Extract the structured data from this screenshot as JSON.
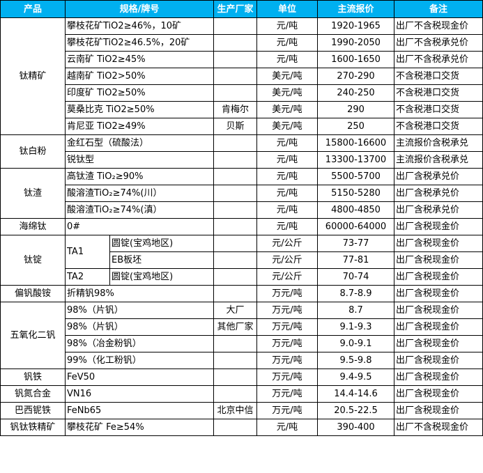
{
  "colors": {
    "header_bg": "#00B0F0",
    "header_text": "#FFFFFF"
  },
  "headers": [
    "产品",
    "规格/牌号",
    "生产厂家",
    "单位",
    "主流报价",
    "备注"
  ],
  "groups": [
    {
      "product": "钛精矿",
      "rows": [
        {
          "spec": "攀枝花矿TiO2≥46%，10矿",
          "maker": "",
          "unit": "元/吨",
          "price": "1920-1965",
          "note": "出厂不含税现金价"
        },
        {
          "spec": "攀枝花矿TiO2≥46.5%，20矿",
          "maker": "",
          "unit": "元/吨",
          "price": "1990-2050",
          "note": "出厂不含税承兑价"
        },
        {
          "spec": "云南矿 TiO2≥45%",
          "maker": "",
          "unit": "元/吨",
          "price": "1600-1650",
          "note": "出厂不含税承兑价"
        },
        {
          "spec": "越南矿 TiO2>50%",
          "maker": "",
          "unit": "美元/吨",
          "price": "270-290",
          "note": "不含税港口交货"
        },
        {
          "spec": "印度矿 TiO2≥50%",
          "maker": "",
          "unit": "美元/吨",
          "price": "240-250",
          "note": "不含税港口交货"
        },
        {
          "spec": "莫桑比克 TiO2≥50%",
          "maker": "肯梅尔",
          "unit": "美元/吨",
          "price": "290",
          "note": "不含税港口交货"
        },
        {
          "spec": "肯尼亚 TiO2≥49%",
          "maker": "贝斯",
          "unit": "美元/吨",
          "price": "250",
          "note": "不含税港口交货"
        }
      ]
    },
    {
      "product": "钛白粉",
      "rows": [
        {
          "spec": "金红石型（硫酸法）",
          "maker": "",
          "unit": "元/吨",
          "price": "15800-16600",
          "note": "主流报价含税承兑"
        },
        {
          "spec": "锐钛型",
          "maker": "",
          "unit": "元/吨",
          "price": "13300-13700",
          "note": "主流报价含税承兑"
        }
      ]
    },
    {
      "product": "钛渣",
      "rows": [
        {
          "spec": "高钛渣 TiO₂≥90%",
          "maker": "",
          "unit": "元/吨",
          "price": "5500-5700",
          "note": "出厂含税承兑价"
        },
        {
          "spec": "酸溶渣TiO₂≥74%(川）",
          "maker": "",
          "unit": "元/吨",
          "price": "5150-5280",
          "note": "出厂含税承兑价"
        },
        {
          "spec": "酸溶渣TiO₂≥74%(滇）",
          "maker": "",
          "unit": "元/吨",
          "price": "4800-4850",
          "note": "出厂含税承兑价"
        }
      ]
    },
    {
      "product": "海绵钛",
      "rows": [
        {
          "spec": "0#",
          "maker": "",
          "unit": "元/吨",
          "price": "60000-64000",
          "note": "出厂含税现金价"
        }
      ]
    },
    {
      "product": "钛锭",
      "rows": [
        {
          "grade": "TA1",
          "grade_span": 2,
          "spec": "圆锭(宝鸡地区)",
          "maker": "",
          "unit": "元/公斤",
          "price": "73-77",
          "note": "出厂含税现金价"
        },
        {
          "grade": "",
          "spec": "EB板坯",
          "maker": "",
          "unit": "元/公斤",
          "price": "77-81",
          "note": "出厂含税现金价"
        },
        {
          "grade": "TA2",
          "grade_span": 1,
          "spec": "圆锭(宝鸡地区)",
          "maker": "",
          "unit": "元/公斤",
          "price": "70-74",
          "note": "出厂含税现金价"
        }
      ]
    },
    {
      "product": "偏钒酸铵",
      "rows": [
        {
          "spec": "折精钒98%",
          "maker": "",
          "unit": "万元/吨",
          "price": "8.7-8.9",
          "note": "出厂含税现金价"
        }
      ]
    },
    {
      "product": "五氧化二钒",
      "rows": [
        {
          "spec": "98%（片钒）",
          "maker": "大厂",
          "unit": "万元/吨",
          "price": "8.7",
          "note": "出厂含税现金价"
        },
        {
          "spec": "98%（片钒）",
          "maker": "其他厂家",
          "unit": "万元/吨",
          "price": "9.1-9.3",
          "note": "出厂含税现金价"
        },
        {
          "spec": "98%（冶金粉钒）",
          "maker": "",
          "unit": "万元/吨",
          "price": "9.0-9.1",
          "note": "出厂含税现金价"
        },
        {
          "spec": "99%（化工粉钒）",
          "maker": "",
          "unit": "万元/吨",
          "price": "9.5-9.8",
          "note": "出厂含税现金价"
        }
      ]
    },
    {
      "product": "钒铁",
      "rows": [
        {
          "spec": "FeV50",
          "maker": "",
          "unit": "万元/吨",
          "price": "9.4-9.5",
          "note": "出厂含税现金价"
        }
      ]
    },
    {
      "product": "钒氮合金",
      "rows": [
        {
          "spec": "VN16",
          "maker": "",
          "unit": "万元/吨",
          "price": "14.4-14.6",
          "note": "出厂含税现金价"
        }
      ]
    },
    {
      "product": "巴西铌铁",
      "rows": [
        {
          "spec": "FeNb65",
          "maker": "北京中信",
          "unit": "万元/吨",
          "price": "20.5-22.5",
          "note": "出厂含税现金价"
        }
      ]
    },
    {
      "product": "钒钛铁精矿",
      "rows": [
        {
          "spec": "攀枝花矿 Fe≥54%",
          "maker": "",
          "unit": "元/吨",
          "price": "390-400",
          "note": "出厂不含税现金价"
        }
      ]
    }
  ]
}
